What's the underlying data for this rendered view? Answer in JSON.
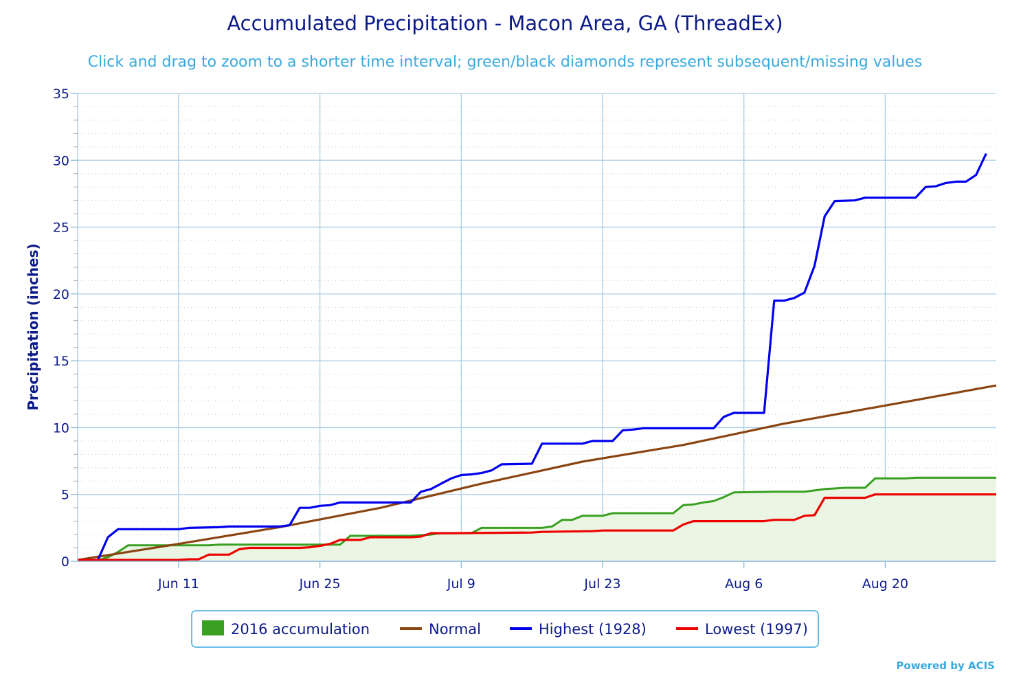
{
  "chart_data": {
    "type": "line",
    "title": "Accumulated Precipitation - Macon Area, GA (ThreadEx)",
    "subtitle": "Click and drag to zoom to a shorter time interval; green/black diamonds represent subsequent/missing values",
    "ylabel": "Precipitation (inches)",
    "xlabel": "",
    "ylim": [
      0,
      35
    ],
    "yticks": [
      0,
      5,
      10,
      15,
      20,
      25,
      30,
      35
    ],
    "x_day_range": [
      0,
      91
    ],
    "x_ticks": [
      {
        "day": 10,
        "label": "Jun 11"
      },
      {
        "day": 24,
        "label": "Jun 25"
      },
      {
        "day": 38,
        "label": "Jul 9"
      },
      {
        "day": 52,
        "label": "Jul 23"
      },
      {
        "day": 66,
        "label": "Aug 6"
      },
      {
        "day": 80,
        "label": "Aug 20"
      }
    ],
    "grid": true,
    "legend_position": "bottom-center",
    "credit": "Powered by ACIS",
    "series": [
      {
        "name": "2016 accumulation",
        "style": "area",
        "color": "#3aa021",
        "fill": "#eaf5e3",
        "points": [
          [
            0,
            0.1
          ],
          [
            1,
            0.1
          ],
          [
            2,
            0.1
          ],
          [
            3,
            0.3
          ],
          [
            4,
            0.7
          ],
          [
            5,
            1.2
          ],
          [
            10,
            1.2
          ],
          [
            13,
            1.2
          ],
          [
            14,
            1.25
          ],
          [
            22,
            1.25
          ],
          [
            25,
            1.25
          ],
          [
            26,
            1.25
          ],
          [
            27,
            1.9
          ],
          [
            31,
            1.9
          ],
          [
            33,
            1.9
          ],
          [
            35,
            2.0
          ],
          [
            36,
            2.1
          ],
          [
            39,
            2.1
          ],
          [
            40,
            2.5
          ],
          [
            46,
            2.5
          ],
          [
            47,
            2.6
          ],
          [
            48,
            3.1
          ],
          [
            49,
            3.1
          ],
          [
            50,
            3.4
          ],
          [
            52,
            3.4
          ],
          [
            53,
            3.6
          ],
          [
            59,
            3.6
          ],
          [
            60,
            4.2
          ],
          [
            61,
            4.25
          ],
          [
            62,
            4.4
          ],
          [
            63,
            4.5
          ],
          [
            64,
            4.8
          ],
          [
            65,
            5.15
          ],
          [
            69,
            5.2
          ],
          [
            72,
            5.2
          ],
          [
            73,
            5.3
          ],
          [
            74,
            5.4
          ],
          [
            75,
            5.45
          ],
          [
            76,
            5.5
          ],
          [
            78,
            5.5
          ],
          [
            79,
            6.2
          ],
          [
            82,
            6.2
          ],
          [
            83,
            6.25
          ],
          [
            91,
            6.25
          ]
        ]
      },
      {
        "name": "Normal",
        "style": "line",
        "color": "#8b4513",
        "points": [
          [
            0,
            0.1
          ],
          [
            10,
            1.3
          ],
          [
            20,
            2.55
          ],
          [
            30,
            4.0
          ],
          [
            40,
            5.8
          ],
          [
            50,
            7.45
          ],
          [
            60,
            8.7
          ],
          [
            70,
            10.3
          ],
          [
            80,
            11.65
          ],
          [
            91,
            13.15
          ]
        ]
      },
      {
        "name": "Highest (1928)",
        "style": "line",
        "color": "#0000ee",
        "points": [
          [
            0,
            0.1
          ],
          [
            2,
            0.1
          ],
          [
            3,
            1.8
          ],
          [
            4,
            2.4
          ],
          [
            10,
            2.4
          ],
          [
            11,
            2.5
          ],
          [
            14,
            2.55
          ],
          [
            15,
            2.6
          ],
          [
            20,
            2.6
          ],
          [
            21,
            2.7
          ],
          [
            22,
            4.0
          ],
          [
            23,
            4.0
          ],
          [
            24,
            4.15
          ],
          [
            25,
            4.2
          ],
          [
            26,
            4.4
          ],
          [
            33,
            4.4
          ],
          [
            34,
            5.2
          ],
          [
            35,
            5.4
          ],
          [
            36,
            5.8
          ],
          [
            37,
            6.2
          ],
          [
            38,
            6.45
          ],
          [
            39,
            6.5
          ],
          [
            40,
            6.6
          ],
          [
            41,
            6.8
          ],
          [
            42,
            7.25
          ],
          [
            45,
            7.3
          ],
          [
            46,
            8.8
          ],
          [
            50,
            8.8
          ],
          [
            51,
            9.0
          ],
          [
            53,
            9.0
          ],
          [
            54,
            9.8
          ],
          [
            55,
            9.85
          ],
          [
            56,
            9.95
          ],
          [
            60,
            9.95
          ],
          [
            63,
            9.95
          ],
          [
            64,
            10.8
          ],
          [
            65,
            11.1
          ],
          [
            68,
            11.1
          ],
          [
            69,
            19.5
          ],
          [
            70,
            19.5
          ],
          [
            71,
            19.7
          ],
          [
            72,
            20.1
          ],
          [
            73,
            22.1
          ],
          [
            74,
            25.8
          ],
          [
            75,
            26.95
          ],
          [
            77,
            27.0
          ],
          [
            78,
            27.2
          ],
          [
            83,
            27.2
          ],
          [
            84,
            28.0
          ],
          [
            85,
            28.05
          ],
          [
            86,
            28.3
          ],
          [
            87,
            28.4
          ],
          [
            88,
            28.4
          ],
          [
            89,
            28.9
          ],
          [
            90,
            30.5
          ]
        ]
      },
      {
        "name": "Lowest (1997)",
        "style": "line",
        "color": "#ee0000",
        "points": [
          [
            0,
            0.1
          ],
          [
            10,
            0.1
          ],
          [
            11,
            0.15
          ],
          [
            12,
            0.15
          ],
          [
            13,
            0.5
          ],
          [
            15,
            0.5
          ],
          [
            16,
            0.9
          ],
          [
            17,
            1.0
          ],
          [
            22,
            1.0
          ],
          [
            23,
            1.05
          ],
          [
            24,
            1.15
          ],
          [
            25,
            1.3
          ],
          [
            26,
            1.6
          ],
          [
            28,
            1.6
          ],
          [
            29,
            1.8
          ],
          [
            33,
            1.8
          ],
          [
            34,
            1.85
          ],
          [
            35,
            2.1
          ],
          [
            37,
            2.1
          ],
          [
            45,
            2.15
          ],
          [
            46,
            2.2
          ],
          [
            51,
            2.25
          ],
          [
            52,
            2.3
          ],
          [
            59,
            2.3
          ],
          [
            60,
            2.75
          ],
          [
            61,
            3.0
          ],
          [
            68,
            3.0
          ],
          [
            69,
            3.1
          ],
          [
            71,
            3.1
          ],
          [
            72,
            3.4
          ],
          [
            73,
            3.45
          ],
          [
            74,
            4.75
          ],
          [
            78,
            4.75
          ],
          [
            79,
            5.0
          ],
          [
            91,
            5.0
          ]
        ]
      }
    ]
  }
}
